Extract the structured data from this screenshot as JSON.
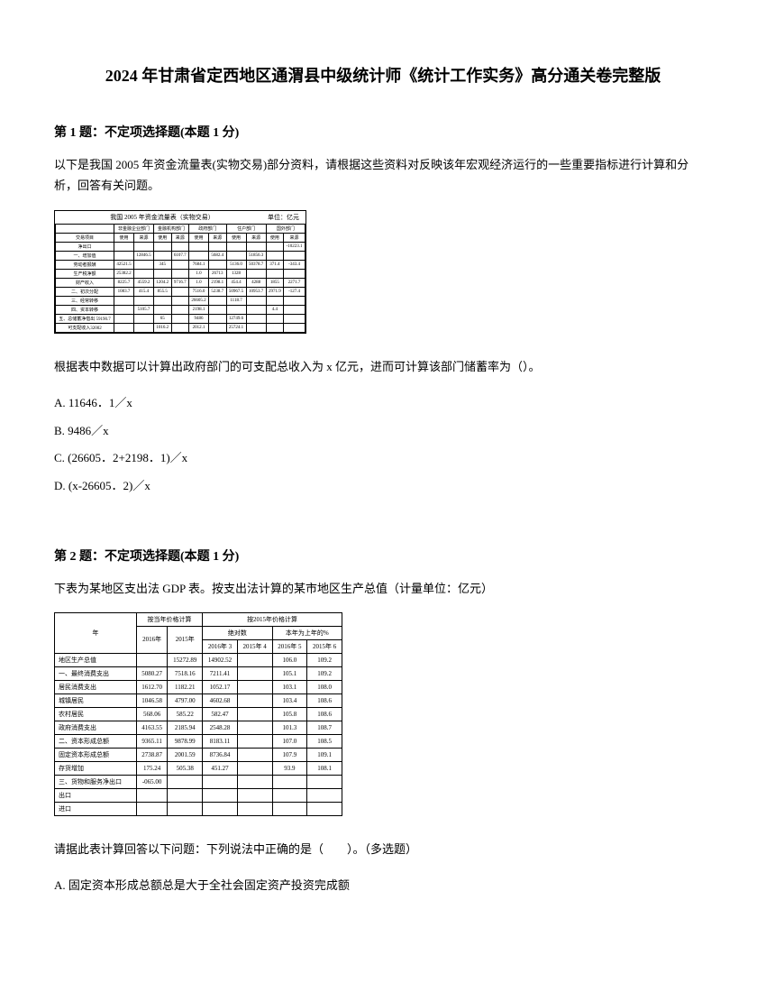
{
  "title": "2024 年甘肃省定西地区通渭县中级统计师《统计工作实务》高分通关卷完整版",
  "q1": {
    "header": "第 1 题：不定项选择题(本题 1 分)",
    "text": "以下是我国 2005 年资金流量表(实物交易)部分资料，请根据这些资料对反映该年宏观经济运行的一些重要指标进行计算和分析，回答有关问题。",
    "subtext": "根据表中数据可以计算出政府部门的可支配总收入为 x 亿元，进而可计算该部门储蓄率为（）。",
    "optA": "A. 11646．1／x",
    "optB": "B. 9486／x",
    "optC": "C. (26605．2+2198．1)／x",
    "optD": "D. (x-26605．2)／x"
  },
  "q2": {
    "header": "第 2 题：不定项选择题(本题 1 分)",
    "text": "下表为某地区支出法 GDP 表。按支出法计算的某市地区生产总值（计量单位：亿元）",
    "subtext": "请据此表计算回答以下问题：下列说法中正确的是（　　）。（多选题）",
    "optA": "A. 固定资本形成总额总是大于全社会固定资产投资完成额"
  },
  "table1": {
    "caption": "我国 2005 年资金流量表（实物交易）",
    "unit": "单位：亿元",
    "headers": [
      "",
      "非金融企业部门",
      "",
      "金融机构部门",
      "",
      "政府部门",
      "",
      "住户部门",
      "",
      "国外部门",
      ""
    ],
    "subheaders": [
      "交易项目",
      "使用",
      "来源",
      "使用",
      "来源",
      "使用",
      "来源",
      "使用",
      "来源",
      "使用",
      "来源"
    ],
    "rows": [
      [
        "净出口",
        "",
        "",
        "",
        "",
        "",
        "",
        "",
        "",
        "",
        "-10223.1"
      ],
      [
        "一、增加值",
        "",
        "12846.5",
        "",
        "6107.7",
        "",
        "5682.4",
        "",
        "51856.3",
        "",
        ""
      ],
      [
        "劳动者报酬",
        "42521.5",
        "",
        "345",
        "",
        "7684.1",
        "",
        "5136.0",
        "50378.7",
        "371.4",
        "-343.4"
      ],
      [
        "生产税净额",
        "25382.2",
        "",
        "",
        "",
        "1.0",
        "26713",
        "1328",
        "",
        "",
        ""
      ],
      [
        "财产收入",
        "8225.7",
        "4559.2",
        "1204.2",
        "9716.7",
        "1.0",
        "2198.1",
        "454.4",
        "4288",
        "1855",
        "2271.7"
      ],
      [
        "二、初次分配",
        "1083.7",
        "415.4",
        "855.5",
        "",
        "7516.0",
        "5238.7",
        "50967.5",
        "10953.7",
        "2971.9",
        "-127.4"
      ],
      [
        "三、经常转移",
        "",
        "",
        "",
        "",
        "26605.2",
        "",
        "1118.7",
        "",
        "",
        ""
      ],
      [
        "四、资本转移",
        "",
        "5105.7",
        "",
        "",
        "2198.1",
        "",
        "",
        "",
        "4.4",
        ""
      ],
      [
        "五、总储蓄净借出 59190.7",
        "",
        "",
        "65",
        "",
        "9486",
        "",
        "12749.6",
        "",
        "",
        ""
      ],
      [
        "可支配收入32002",
        "",
        "",
        "1016.2",
        "",
        "2012.1",
        "",
        "25724.1",
        "",
        "",
        ""
      ]
    ]
  },
  "table2": {
    "headers1": [
      "",
      "按当年价格计算",
      "",
      "按2015年价格计算",
      "",
      "",
      ""
    ],
    "headers2": [
      "",
      "2016年",
      "2015年",
      "绝对数",
      "",
      "本年为上年的%",
      ""
    ],
    "headers3": [
      "年",
      "1",
      "2",
      "2016年 3",
      "2015年 4",
      "2016年 5",
      "2015年 6"
    ],
    "rows": [
      [
        "地区生产总值",
        "",
        "15272.89",
        "14902.52",
        "",
        "106.0",
        "109.2"
      ],
      [
        "一、最终消费支出",
        "5080.27",
        "7518.16",
        "7211.41",
        "",
        "105.1",
        "109.2"
      ],
      [
        "居民消费支出",
        "1612.70",
        "1182.21",
        "1052.17",
        "",
        "103.1",
        "108.0"
      ],
      [
        "城镇居民",
        "1046.58",
        "4797.00",
        "4602.68",
        "",
        "103.4",
        "108.6"
      ],
      [
        "农村居民",
        "568.06",
        "585.22",
        "582.47",
        "",
        "105.8",
        "108.6"
      ],
      [
        "政府消费支出",
        "4163.55",
        "2185.94",
        "2548.28",
        "",
        "101.3",
        "108.7"
      ],
      [
        "二、资本形成总额",
        "9365.11",
        "9878.99",
        "8183.11",
        "",
        "107.0",
        "108.5"
      ],
      [
        "固定资本形成总额",
        "2738.87",
        "2001.59",
        "8736.84",
        "",
        "107.9",
        "109.1"
      ],
      [
        "存货增加",
        "175.24",
        "505.38",
        "451.27",
        "",
        "93.9",
        "108.1"
      ],
      [
        "三、货物和服务净出口",
        "-065.00",
        "",
        "",
        "",
        "",
        ""
      ],
      [
        "出口",
        "",
        "",
        "",
        "",
        "",
        ""
      ],
      [
        "进口",
        "",
        "",
        "",
        "",
        "",
        ""
      ]
    ]
  }
}
